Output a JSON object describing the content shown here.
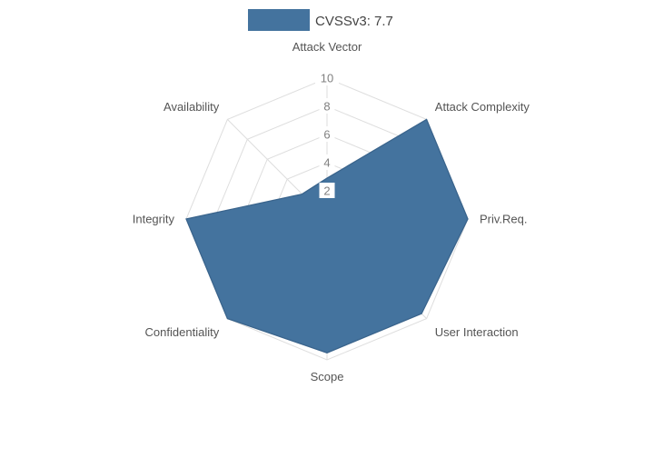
{
  "legend": {
    "label": "CVSSv3: 7.7",
    "swatch_color": "#44739E",
    "text_color": "#444444"
  },
  "chart_data": {
    "type": "radar",
    "title": "",
    "categories": [
      "Attack Vector",
      "Attack Complexity",
      "Priv.Req.",
      "User Interaction",
      "Scope",
      "Confidentiality",
      "Integrity",
      "Availability"
    ],
    "series": [
      {
        "name": "CVSSv3: 7.7",
        "values": [
          2.9,
          10,
          10,
          9.5,
          9.5,
          10,
          10,
          2.5
        ]
      }
    ],
    "rlim": [
      0,
      10
    ],
    "rticks": [
      2,
      4,
      6,
      8,
      10
    ],
    "grid": true,
    "grid_shape": "polygon",
    "legend_position": "top-center",
    "styles": {
      "fill_color": "#44739E",
      "line_color": "#3A648C",
      "grid_color": "#DEDEDE",
      "label_color": "#545454",
      "tick_color": "#808080",
      "tick_bg": "#FFFFFF",
      "background": "#FFFFFF"
    }
  }
}
